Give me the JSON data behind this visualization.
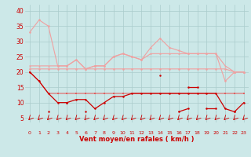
{
  "x": [
    0,
    1,
    2,
    3,
    4,
    5,
    6,
    7,
    8,
    9,
    10,
    11,
    12,
    13,
    14,
    15,
    16,
    17,
    18,
    19,
    20,
    21,
    22,
    23
  ],
  "line_max": [
    33,
    37,
    35,
    22,
    22,
    24,
    21,
    22,
    22,
    25,
    26,
    25,
    24,
    28,
    31,
    28,
    27,
    26,
    26,
    26,
    26,
    17,
    20,
    20
  ],
  "line_avg_high": [
    22,
    22,
    22,
    22,
    22,
    24,
    21,
    22,
    22,
    25,
    26,
    25,
    24,
    26,
    26,
    26,
    26,
    26,
    26,
    26,
    26,
    22,
    20,
    20
  ],
  "line_avg_low": [
    21,
    21,
    21,
    21,
    21,
    21,
    21,
    21,
    21,
    21,
    21,
    21,
    21,
    21,
    21,
    21,
    21,
    21,
    21,
    21,
    21,
    21,
    20,
    20
  ],
  "line_wind_med": [
    20,
    17,
    13,
    13,
    13,
    13,
    13,
    13,
    13,
    13,
    13,
    13,
    13,
    13,
    13,
    13,
    13,
    13,
    13,
    13,
    13,
    13,
    13,
    13
  ],
  "line_min": [
    20,
    17,
    13,
    10,
    10,
    11,
    11,
    8,
    10,
    12,
    12,
    13,
    13,
    13,
    13,
    13,
    13,
    13,
    13,
    13,
    13,
    8,
    7,
    10
  ],
  "line_bottom": [
    null,
    null,
    7,
    null,
    10,
    null,
    7,
    null,
    null,
    null,
    null,
    null,
    null,
    null,
    null,
    null,
    7,
    8,
    null,
    8,
    8,
    null,
    7,
    null
  ],
  "line_spike": [
    null,
    null,
    null,
    null,
    null,
    null,
    null,
    null,
    null,
    null,
    null,
    null,
    null,
    null,
    19,
    null,
    null,
    15,
    15,
    null,
    null,
    null,
    null,
    null
  ],
  "background_color": "#cce8e8",
  "grid_color": "#aacccc",
  "color_light": "#f0a0a0",
  "color_medium": "#e06060",
  "color_dark": "#cc0000",
  "xlabel": "Vent moyen/en rafales ( km/h )",
  "ylabel_ticks": [
    5,
    10,
    15,
    20,
    25,
    30,
    35,
    40
  ],
  "xlim": [
    -0.5,
    23.5
  ],
  "ylim": [
    3.5,
    42
  ]
}
